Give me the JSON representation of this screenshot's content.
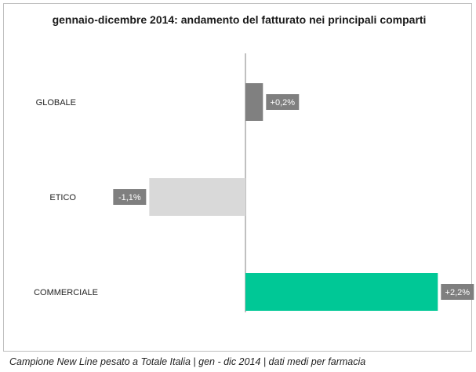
{
  "chart_data": {
    "type": "bar",
    "orientation": "horizontal",
    "title": "gennaio-dicembre 2014: andamento del fatturato nei principali comparti",
    "categories": [
      "GLOBALE",
      "ETICO",
      "COMMERCIALE"
    ],
    "values": [
      0.2,
      -1.1,
      2.2
    ],
    "data_labels": [
      "+0,2%",
      "-1,1%",
      "+2,2%"
    ],
    "colors": [
      "#808080",
      "#d9d9d9",
      "#00c896"
    ],
    "label_box_color": "#7f7f7f",
    "grid": false,
    "legend": "none"
  },
  "caption": "Campione New Line pesato a Totale Italia | gen - dic 2014 | dati medi per farmacia"
}
